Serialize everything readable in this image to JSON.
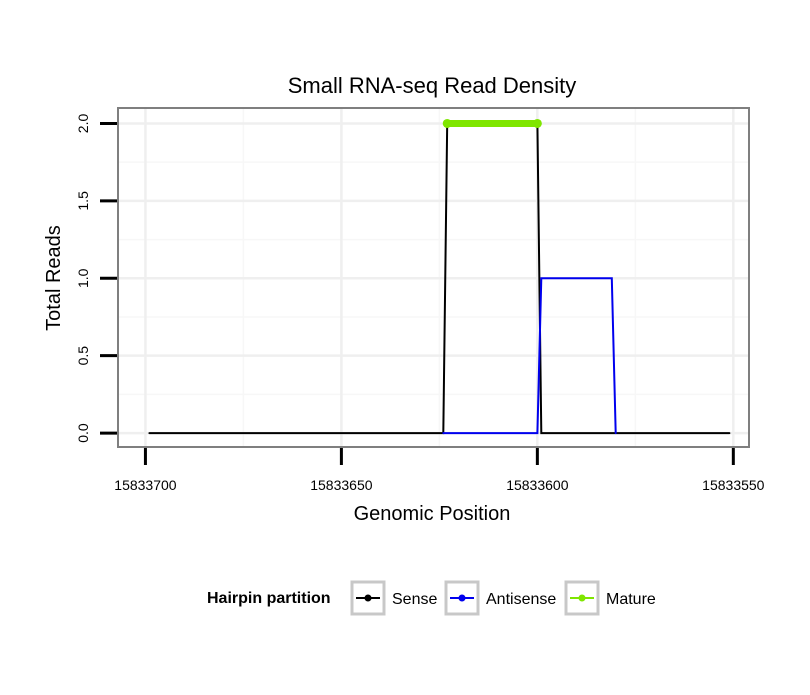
{
  "chart_data": {
    "type": "line",
    "title": "Small RNA-seq Read Density",
    "xlabel": "Genomic Position",
    "ylabel": "Total Reads",
    "x_reversed": true,
    "xlim": [
      15833707,
      15833546
    ],
    "ylim": [
      -0.09,
      2.1
    ],
    "xticks": [
      15833700,
      15833650,
      15833600,
      15833550
    ],
    "xtick_labels": [
      "15833700",
      "15833650",
      "15833600",
      "15833550"
    ],
    "yticks": [
      0,
      0.5,
      1,
      1.5,
      2
    ],
    "ytick_labels": [
      "0.0",
      "0.5",
      "1.0",
      "1.5",
      "2.0"
    ],
    "grid": true,
    "legend": {
      "title": "Hairpin partition",
      "position": "bottom",
      "entries": [
        "Sense",
        "Antisense",
        "Mature"
      ]
    },
    "series": [
      {
        "name": "Sense",
        "color": "#000000",
        "marker": false,
        "x": [
          15833699,
          15833624,
          15833623,
          15833600,
          15833599,
          15833551
        ],
        "y": [
          0,
          0,
          2,
          2,
          0,
          0
        ]
      },
      {
        "name": "Antisense",
        "color": "#0000ee",
        "marker": false,
        "x": [
          15833624,
          15833600,
          15833599,
          15833581,
          15833580
        ],
        "y": [
          0,
          0,
          1,
          1,
          0
        ]
      },
      {
        "name": "Mature",
        "color": "#7fe600",
        "marker": true,
        "x": [
          15833623,
          15833600
        ],
        "y": [
          2,
          2
        ]
      }
    ]
  }
}
